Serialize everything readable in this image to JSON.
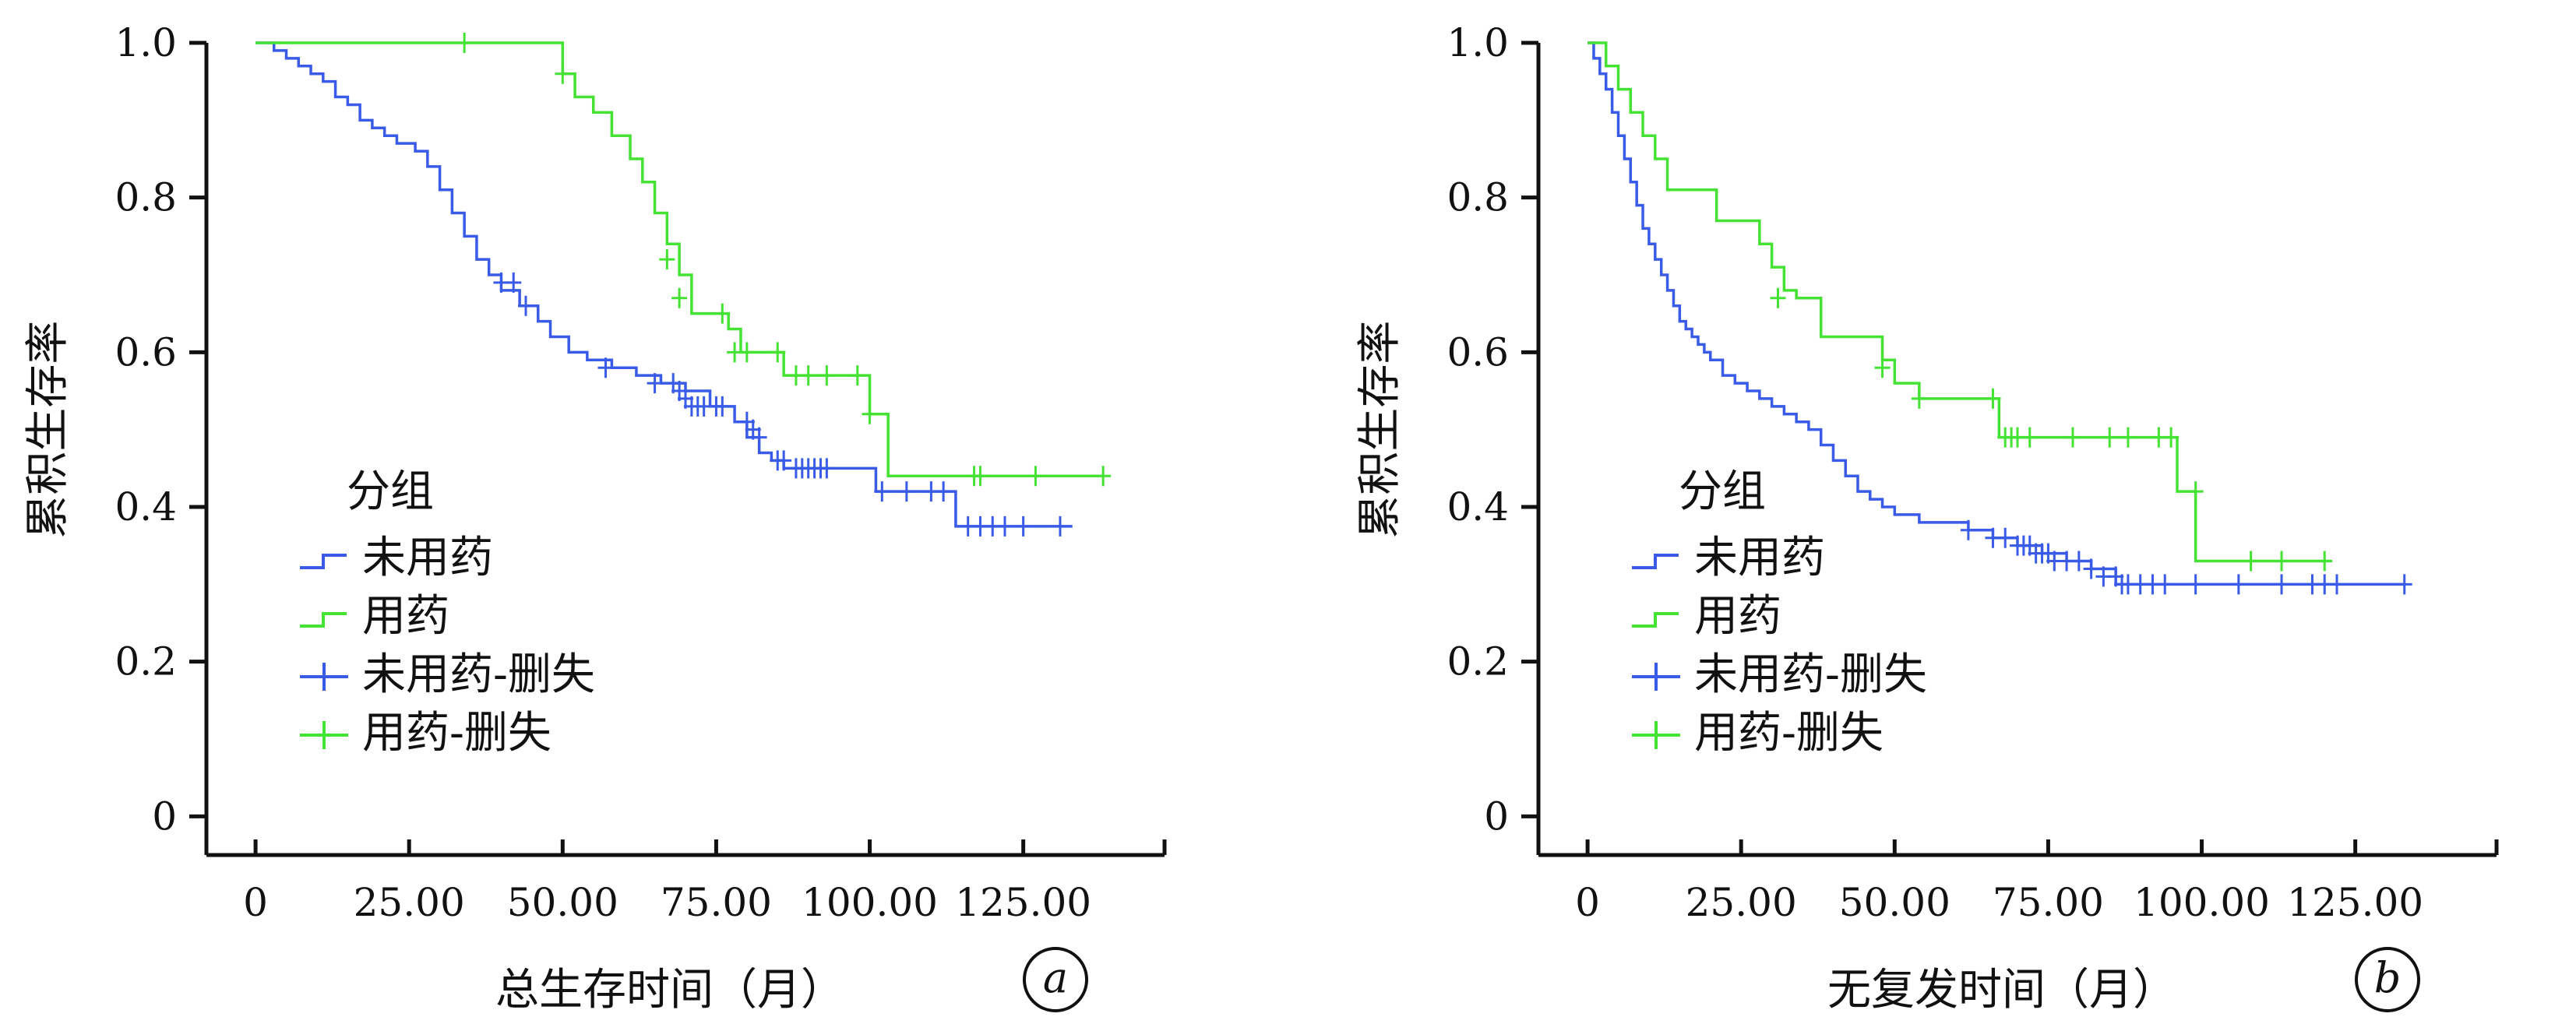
{
  "colors": {
    "untreated": "#3A5BE8",
    "treated": "#44E333"
  },
  "chart_data": [
    {
      "type": "line",
      "panel_label": "a",
      "xlabel": "总生存时间（月）",
      "ylabel": "累积生存率",
      "x_ticks": [
        "0",
        "25.00",
        "50.00",
        "75.00",
        "100.00",
        "125.00"
      ],
      "x_tick_values": [
        0,
        25,
        50,
        75,
        100,
        125
      ],
      "y_ticks": [
        "0",
        "0.2",
        "0.4",
        "0.6",
        "0.8",
        "1.0"
      ],
      "y_tick_values": [
        0,
        0.2,
        0.4,
        0.6,
        0.8,
        1.0
      ],
      "xlim": [
        -8,
        148
      ],
      "ylim": [
        -0.05,
        1.0
      ],
      "legend": {
        "title": "分组",
        "entries": [
          "未用药",
          "用药",
          "未用药-删失",
          "用药-删失"
        ],
        "placement": "lower-left"
      },
      "series": [
        {
          "name": "未用药",
          "color_key": "untreated",
          "x": [
            0,
            3,
            5,
            7,
            9,
            11,
            13,
            15,
            17,
            19,
            21,
            23,
            26,
            28,
            30,
            32,
            34,
            36,
            38,
            40,
            43,
            46,
            48,
            51,
            54,
            58,
            62,
            66,
            70,
            74,
            78,
            80,
            82,
            84,
            86,
            90,
            94,
            98,
            101,
            104,
            108,
            111,
            114,
            118,
            123,
            126,
            129,
            133
          ],
          "y": [
            1.0,
            0.99,
            0.98,
            0.97,
            0.96,
            0.95,
            0.93,
            0.92,
            0.9,
            0.89,
            0.88,
            0.87,
            0.86,
            0.84,
            0.81,
            0.78,
            0.75,
            0.72,
            0.7,
            0.68,
            0.66,
            0.64,
            0.62,
            0.6,
            0.59,
            0.58,
            0.57,
            0.56,
            0.55,
            0.53,
            0.51,
            0.49,
            0.47,
            0.46,
            0.45,
            0.45,
            0.45,
            0.45,
            0.42,
            0.42,
            0.42,
            0.42,
            0.375,
            0.375,
            0.375,
            0.375,
            0.375,
            0.375
          ]
        },
        {
          "name": "用药",
          "color_key": "treated",
          "x": [
            0,
            34,
            50,
            52,
            55,
            58,
            61,
            63,
            65,
            67,
            69,
            71,
            77,
            79,
            84,
            86,
            98,
            100,
            103,
            110,
            118,
            126,
            138
          ],
          "y": [
            1.0,
            1.0,
            0.96,
            0.93,
            0.91,
            0.88,
            0.85,
            0.82,
            0.78,
            0.74,
            0.7,
            0.65,
            0.63,
            0.6,
            0.6,
            0.57,
            0.57,
            0.52,
            0.44,
            0.44,
            0.44,
            0.44,
            0.44
          ]
        }
      ],
      "censored": [
        {
          "name": "未用药-删失",
          "color_key": "untreated",
          "x": [
            40,
            42,
            44,
            57,
            65,
            68,
            69,
            70,
            71,
            72,
            73,
            75,
            76,
            80,
            81,
            82,
            85,
            86,
            88,
            89,
            90,
            91,
            92,
            93,
            102,
            106,
            110,
            112,
            116,
            118,
            120,
            122,
            125,
            131
          ],
          "y": [
            0.69,
            0.69,
            0.66,
            0.58,
            0.56,
            0.56,
            0.55,
            0.54,
            0.53,
            0.53,
            0.53,
            0.53,
            0.53,
            0.51,
            0.5,
            0.49,
            0.46,
            0.46,
            0.45,
            0.45,
            0.45,
            0.45,
            0.45,
            0.45,
            0.42,
            0.42,
            0.42,
            0.42,
            0.375,
            0.375,
            0.375,
            0.375,
            0.375,
            0.375
          ]
        },
        {
          "name": "用药-删失",
          "color_key": "treated",
          "x": [
            34,
            50,
            67,
            69,
            76,
            78,
            80,
            85,
            88,
            90,
            93,
            98,
            100,
            117,
            118,
            127,
            138
          ],
          "y": [
            1.0,
            0.96,
            0.72,
            0.67,
            0.65,
            0.6,
            0.6,
            0.6,
            0.57,
            0.57,
            0.57,
            0.57,
            0.52,
            0.44,
            0.44,
            0.44,
            0.44
          ]
        }
      ]
    },
    {
      "type": "line",
      "panel_label": "b",
      "xlabel": "无复发时间（月）",
      "ylabel": "累积生存率",
      "x_ticks": [
        "0",
        "25.00",
        "50.00",
        "75.00",
        "100.00",
        "125.00"
      ],
      "x_tick_values": [
        0,
        25,
        50,
        75,
        100,
        125
      ],
      "y_ticks": [
        "0",
        "0.2",
        "0.4",
        "0.6",
        "0.8",
        "1.0"
      ],
      "y_tick_values": [
        0,
        0.2,
        0.4,
        0.6,
        0.8,
        1.0
      ],
      "xlim": [
        -8,
        148
      ],
      "ylim": [
        -0.05,
        1.0
      ],
      "legend": {
        "title": "分组",
        "entries": [
          "未用药",
          "用药",
          "未用药-删失",
          "用药-删失"
        ],
        "placement": "lower-left"
      },
      "series": [
        {
          "name": "未用药",
          "color_key": "untreated",
          "x": [
            0,
            1,
            2,
            3,
            4,
            5,
            6,
            7,
            8,
            9,
            10,
            11,
            12,
            13,
            14,
            15,
            16,
            17,
            18,
            19,
            20,
            22,
            24,
            26,
            28,
            30,
            32,
            34,
            36,
            38,
            40,
            42,
            44,
            46,
            48,
            50,
            54,
            58,
            62,
            66,
            70,
            74,
            78,
            82,
            86,
            90,
            95,
            100,
            110,
            120,
            133
          ],
          "y": [
            1.0,
            0.98,
            0.96,
            0.94,
            0.91,
            0.88,
            0.85,
            0.82,
            0.79,
            0.76,
            0.74,
            0.72,
            0.7,
            0.68,
            0.66,
            0.64,
            0.63,
            0.62,
            0.61,
            0.6,
            0.59,
            0.57,
            0.56,
            0.55,
            0.54,
            0.53,
            0.52,
            0.51,
            0.5,
            0.48,
            0.46,
            0.44,
            0.42,
            0.41,
            0.4,
            0.39,
            0.38,
            0.38,
            0.37,
            0.36,
            0.35,
            0.34,
            0.33,
            0.32,
            0.3,
            0.3,
            0.3,
            0.3,
            0.3,
            0.3,
            0.3
          ]
        },
        {
          "name": "用药",
          "color_key": "treated",
          "x": [
            0,
            3,
            5,
            7,
            9,
            11,
            13,
            18,
            21,
            26,
            28,
            30,
            32,
            34,
            38,
            46,
            48,
            50,
            54,
            60,
            67,
            70,
            80,
            90,
            96,
            99,
            105,
            112,
            121
          ],
          "y": [
            1.0,
            0.97,
            0.94,
            0.91,
            0.88,
            0.85,
            0.81,
            0.81,
            0.77,
            0.77,
            0.74,
            0.71,
            0.68,
            0.67,
            0.62,
            0.62,
            0.59,
            0.56,
            0.54,
            0.54,
            0.49,
            0.49,
            0.49,
            0.49,
            0.42,
            0.33,
            0.33,
            0.33,
            0.33
          ]
        }
      ],
      "censored": [
        {
          "name": "未用药-删失",
          "color_key": "untreated",
          "x": [
            62,
            66,
            68,
            70,
            71,
            72,
            73,
            74,
            75,
            76,
            78,
            80,
            82,
            84,
            86,
            87,
            88,
            90,
            92,
            94,
            99,
            106,
            113,
            118,
            120,
            122,
            133
          ],
          "y": [
            0.37,
            0.36,
            0.36,
            0.35,
            0.35,
            0.35,
            0.34,
            0.34,
            0.34,
            0.33,
            0.33,
            0.33,
            0.32,
            0.31,
            0.31,
            0.3,
            0.3,
            0.3,
            0.3,
            0.3,
            0.3,
            0.3,
            0.3,
            0.3,
            0.3,
            0.3,
            0.3
          ]
        },
        {
          "name": "用药-删失",
          "color_key": "treated",
          "x": [
            31,
            48,
            54,
            66,
            68,
            69,
            70,
            72,
            79,
            85,
            88,
            93,
            95,
            99,
            108,
            113,
            120
          ],
          "y": [
            0.67,
            0.58,
            0.54,
            0.54,
            0.49,
            0.49,
            0.49,
            0.49,
            0.49,
            0.49,
            0.49,
            0.49,
            0.49,
            0.42,
            0.33,
            0.33,
            0.33
          ]
        }
      ]
    }
  ]
}
